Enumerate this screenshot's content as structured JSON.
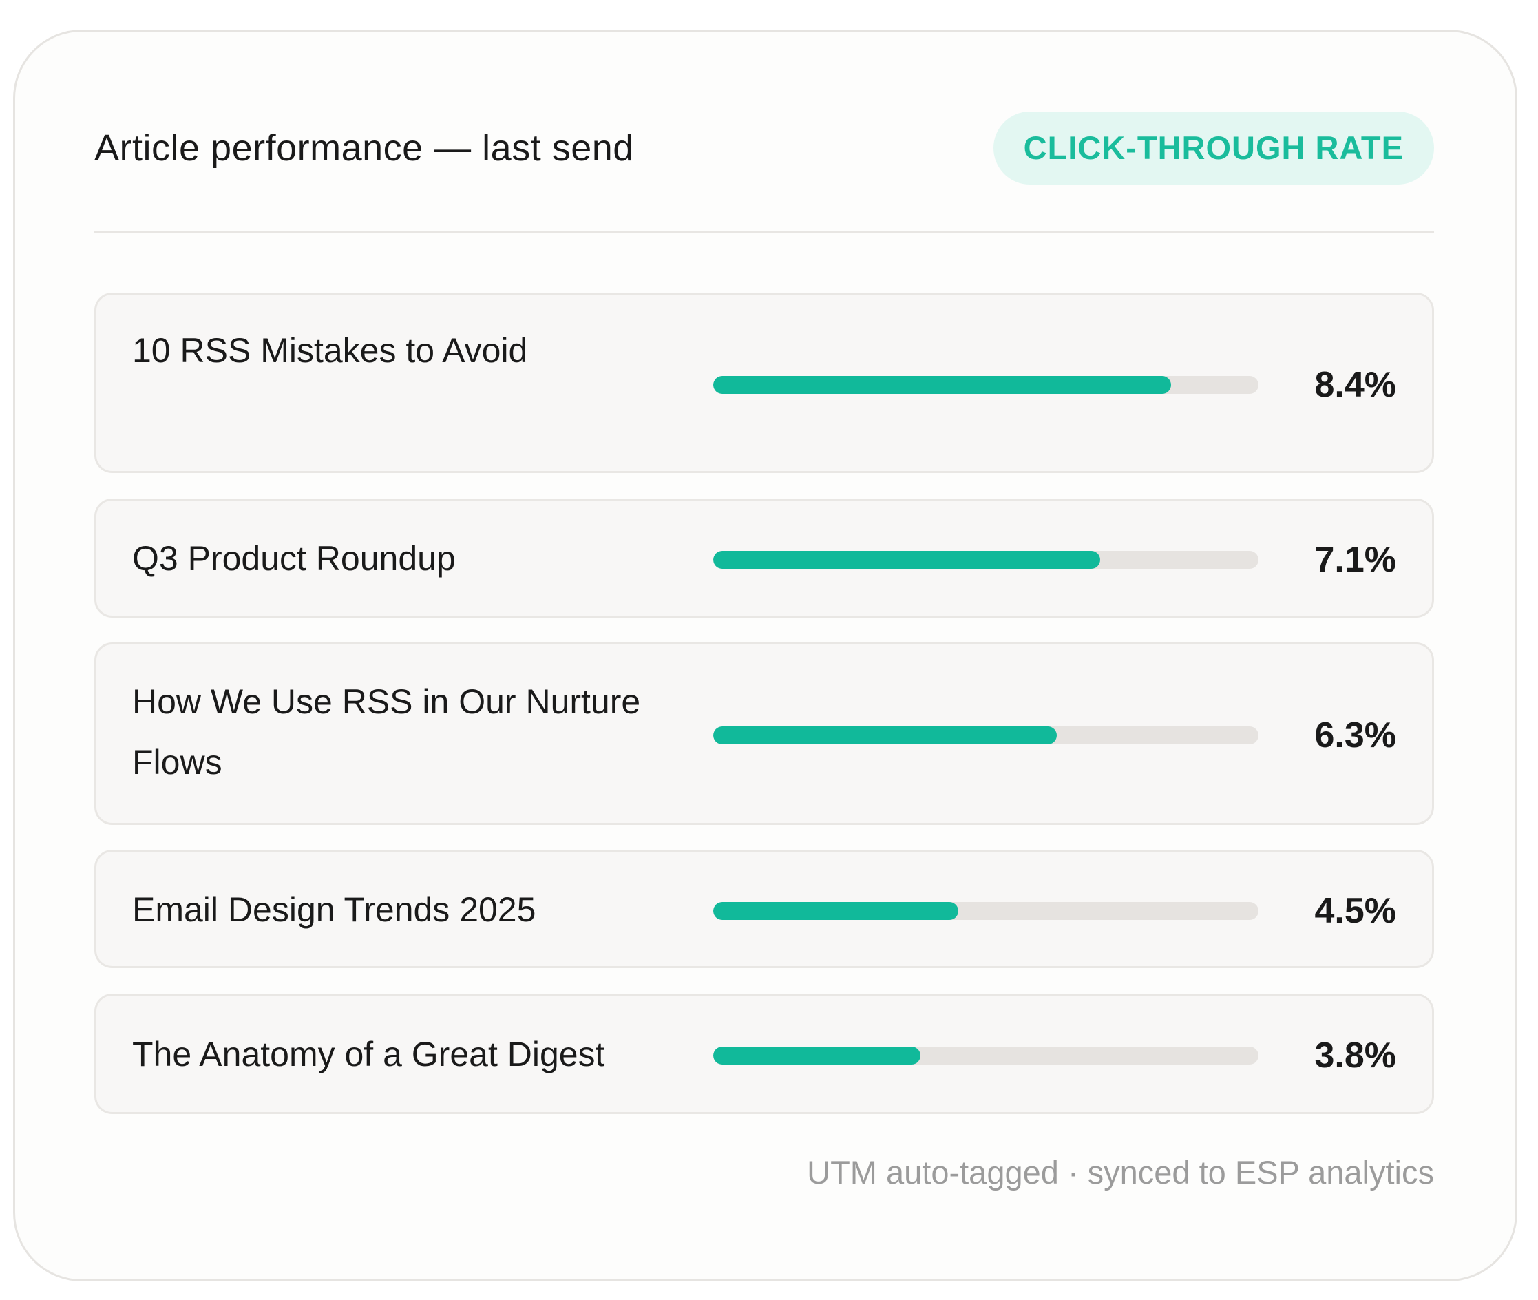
{
  "header": {
    "title": "Article performance — last send",
    "badge": "CLICK-THROUGH RATE"
  },
  "articles": [
    {
      "name": "10 RSS Mistakes to Avoid",
      "value_label": "8.4%",
      "value": 8.4,
      "fill_fraction": 0.84
    },
    {
      "name": "Q3 Product Roundup",
      "value_label": "7.1%",
      "value": 7.1,
      "fill_fraction": 0.71
    },
    {
      "name": "How We Use RSS in Our Nurture Flows",
      "value_label": "6.3%",
      "value": 6.3,
      "fill_fraction": 0.63
    },
    {
      "name": "Email Design Trends 2025",
      "value_label": "4.5%",
      "value": 4.5,
      "fill_fraction": 0.45
    },
    {
      "name": "The Anatomy of a Great Digest",
      "value_label": "3.8%",
      "value": 3.8,
      "fill_fraction": 0.38
    }
  ],
  "footer": {
    "note": "UTM auto-tagged · synced to ESP analytics"
  },
  "colors": {
    "accent": "#11b99a",
    "badge_bg": "#e3f7f2",
    "track": "#e6e3e0"
  }
}
